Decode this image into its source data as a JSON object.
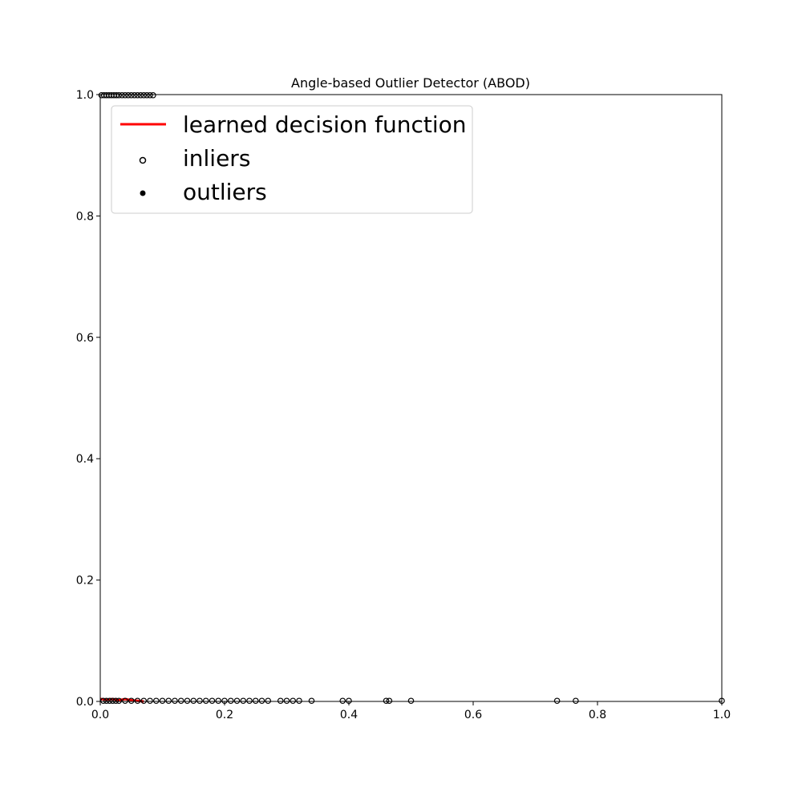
{
  "chart_data": {
    "type": "scatter",
    "title": "Angle-based Outlier Detector (ABOD)",
    "xlabel": "",
    "ylabel": "",
    "xlim": [
      0.0,
      1.0
    ],
    "ylim": [
      0.0,
      1.0
    ],
    "x_ticks": [
      "0.0",
      "0.2",
      "0.4",
      "0.6",
      "0.8",
      "1.0"
    ],
    "y_ticks": [
      "0.0",
      "0.2",
      "0.4",
      "0.6",
      "0.8",
      "1.0"
    ],
    "grid": false,
    "legend": {
      "placement": "upper-left",
      "entries": [
        {
          "label": "learned decision function",
          "marker": "line",
          "color": "#ff0000"
        },
        {
          "label": "inliers",
          "marker": "open-circle",
          "color": "#000000"
        },
        {
          "label": "outliers",
          "marker": "filled-circle",
          "color": "#000000"
        }
      ]
    },
    "series": [
      {
        "name": "learned decision function",
        "kind": "line",
        "color": "#ff0000",
        "x": [
          0.0,
          0.01,
          0.02,
          0.03,
          0.04,
          0.05,
          0.06,
          0.07
        ],
        "y": [
          0.004,
          0.003,
          0.004,
          0.002,
          0.004,
          0.002,
          0.001,
          0.0
        ]
      },
      {
        "name": "inliers",
        "kind": "scatter",
        "marker": "open-circle",
        "color": "#000000",
        "x": [
          0.005,
          0.01,
          0.015,
          0.02,
          0.025,
          0.03,
          0.04,
          0.05,
          0.06,
          0.07,
          0.08,
          0.09,
          0.1,
          0.11,
          0.12,
          0.13,
          0.14,
          0.15,
          0.16,
          0.17,
          0.18,
          0.19,
          0.2,
          0.21,
          0.22,
          0.23,
          0.24,
          0.25,
          0.26,
          0.27,
          0.29,
          0.3,
          0.31,
          0.32,
          0.34,
          0.39,
          0.4,
          0.46,
          0.465,
          0.5,
          0.735,
          0.765,
          1.0
        ],
        "y": [
          0.001,
          0.001,
          0.001,
          0.001,
          0.001,
          0.001,
          0.001,
          0.001,
          0.001,
          0.001,
          0.001,
          0.001,
          0.001,
          0.001,
          0.001,
          0.001,
          0.001,
          0.001,
          0.001,
          0.001,
          0.001,
          0.001,
          0.001,
          0.001,
          0.001,
          0.001,
          0.001,
          0.001,
          0.001,
          0.001,
          0.001,
          0.001,
          0.001,
          0.001,
          0.001,
          0.001,
          0.001,
          0.001,
          0.001,
          0.001,
          0.001,
          0.001,
          0.001
        ]
      },
      {
        "name": "inliers",
        "kind": "scatter",
        "marker": "open-circle",
        "color": "#000000",
        "x": [
          0.002,
          0.006,
          0.01,
          0.014,
          0.018,
          0.022,
          0.026,
          0.03,
          0.035,
          0.04,
          0.045,
          0.05,
          0.055,
          0.06,
          0.065,
          0.07,
          0.075,
          0.08,
          0.085
        ],
        "y": [
          0.999,
          0.999,
          0.999,
          0.999,
          0.999,
          0.999,
          0.999,
          0.999,
          0.999,
          0.999,
          0.999,
          0.999,
          0.999,
          0.999,
          0.999,
          0.999,
          0.999,
          0.999,
          0.999
        ]
      }
    ]
  }
}
